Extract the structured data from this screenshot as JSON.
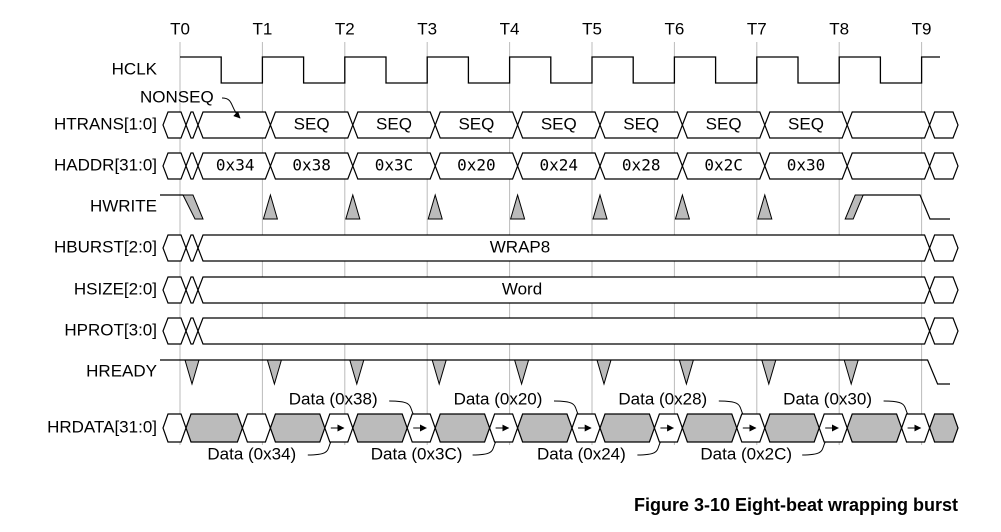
{
  "clock_ticks": [
    "T0",
    "T1",
    "T2",
    "T3",
    "T4",
    "T5",
    "T6",
    "T7",
    "T8",
    "T9"
  ],
  "signals": [
    "HCLK",
    "HTRANS[1:0]",
    "HADDR[31:0]",
    "HWRITE",
    "HBURST[2:0]",
    "HSIZE[2:0]",
    "HPROT[3:0]",
    "HREADY",
    "HRDATA[31:0]"
  ],
  "nonseq_label": "NONSEQ",
  "htrans": [
    "SEQ",
    "SEQ",
    "SEQ",
    "SEQ",
    "SEQ",
    "SEQ",
    "SEQ"
  ],
  "haddr": [
    "0x34",
    "0x38",
    "0x3C",
    "0x20",
    "0x24",
    "0x28",
    "0x2C",
    "0x30"
  ],
  "hburst": "WRAP8",
  "hsize": "Word",
  "hrdata_above": [
    "Data (0x38)",
    "Data (0x20)",
    "Data (0x28)",
    "Data (0x30)"
  ],
  "hrdata_below": [
    "Data (0x34)",
    "Data (0x3C)",
    "Data (0x24)",
    "Data (0x2C)"
  ],
  "caption": "Figure 3-10 Eight-beat wrapping burst"
}
